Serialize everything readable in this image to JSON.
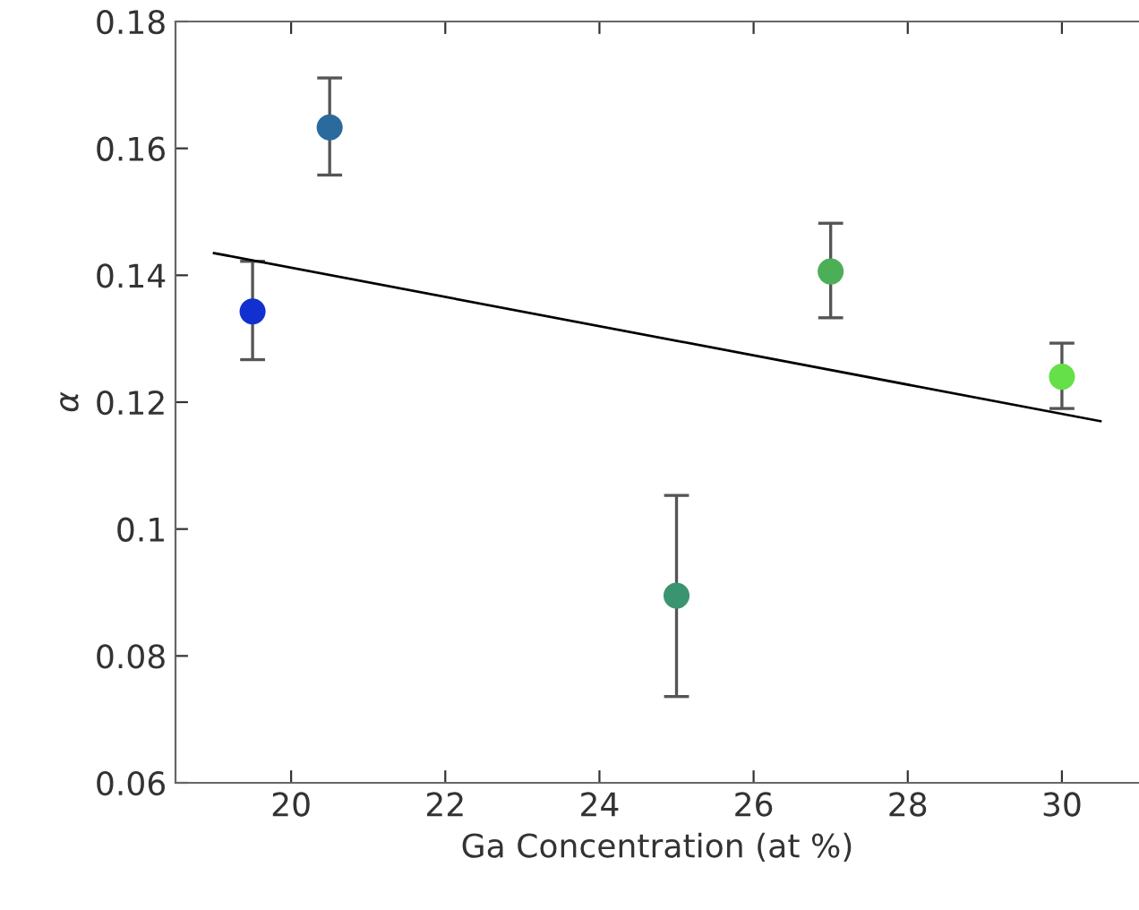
{
  "chart_data": {
    "type": "scatter",
    "xlabel": "Ga Concentration (at %)",
    "ylabel": "α",
    "xlim": [
      18.5,
      31
    ],
    "xticks": [
      20,
      22,
      24,
      26,
      28,
      30
    ],
    "ylim": [
      0.06,
      0.18
    ],
    "yticks": [
      {
        "value": 0.06,
        "label": "0.06"
      },
      {
        "value": 0.08,
        "label": "0.08"
      },
      {
        "value": 0.1,
        "label": "0.1"
      },
      {
        "value": 0.12,
        "label": "0.12"
      },
      {
        "value": 0.14,
        "label": "0.14"
      },
      {
        "value": 0.16,
        "label": "0.16"
      },
      {
        "value": 0.18,
        "label": "0.18"
      }
    ],
    "grid": false,
    "series": [
      {
        "marker": "circle",
        "x": [
          19.5,
          20.5,
          25,
          27,
          30
        ],
        "values": [
          0.1343,
          0.1633,
          0.0895,
          0.1406,
          0.124
        ],
        "colors": [
          "#1230d0",
          "#2a6a9c",
          "#3a9470",
          "#4caf58",
          "#66e048"
        ],
        "errors": [
          [
            0.1267,
            0.1422
          ],
          [
            0.1558,
            0.1711
          ],
          [
            0.0736,
            0.1053
          ],
          [
            0.1333,
            0.1482
          ],
          [
            0.119,
            0.1293
          ]
        ]
      },
      {
        "type": "line",
        "x": [
          19.0,
          30.5
        ],
        "values": [
          0.1435,
          0.117
        ],
        "color": "#000000",
        "marker": "none"
      }
    ]
  }
}
